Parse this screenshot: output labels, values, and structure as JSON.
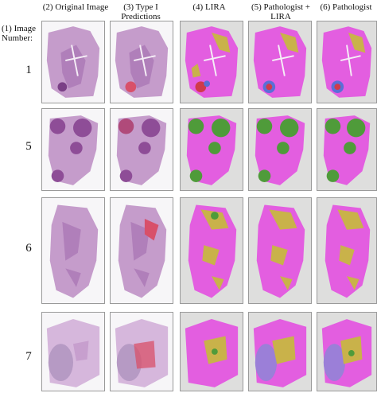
{
  "header": {
    "original": "(2) Original Image",
    "type1": "(3) Type I Predictions",
    "lira": "(4) LIRA",
    "pathologist_lira": "(5) Pathologist + LIRA",
    "pathologist": "(6) Pathologist"
  },
  "row_label_title": "(1) Image Number:",
  "rows": [
    {
      "number": "1"
    },
    {
      "number": "5"
    },
    {
      "number": "6"
    },
    {
      "number": "7"
    }
  ],
  "colors": {
    "he_tissue": "#b98cc0",
    "he_dark": "#7a3f86",
    "red_pred": "#d8506a",
    "seg_magenta": "#e35ee0",
    "seg_olive": "#c9b24a",
    "seg_green": "#4f9b3a",
    "seg_blue": "#5a6fd6",
    "seg_red": "#d03a4a",
    "seg_lavender": "#9b7fd8",
    "tile_gray": "#dededd"
  }
}
